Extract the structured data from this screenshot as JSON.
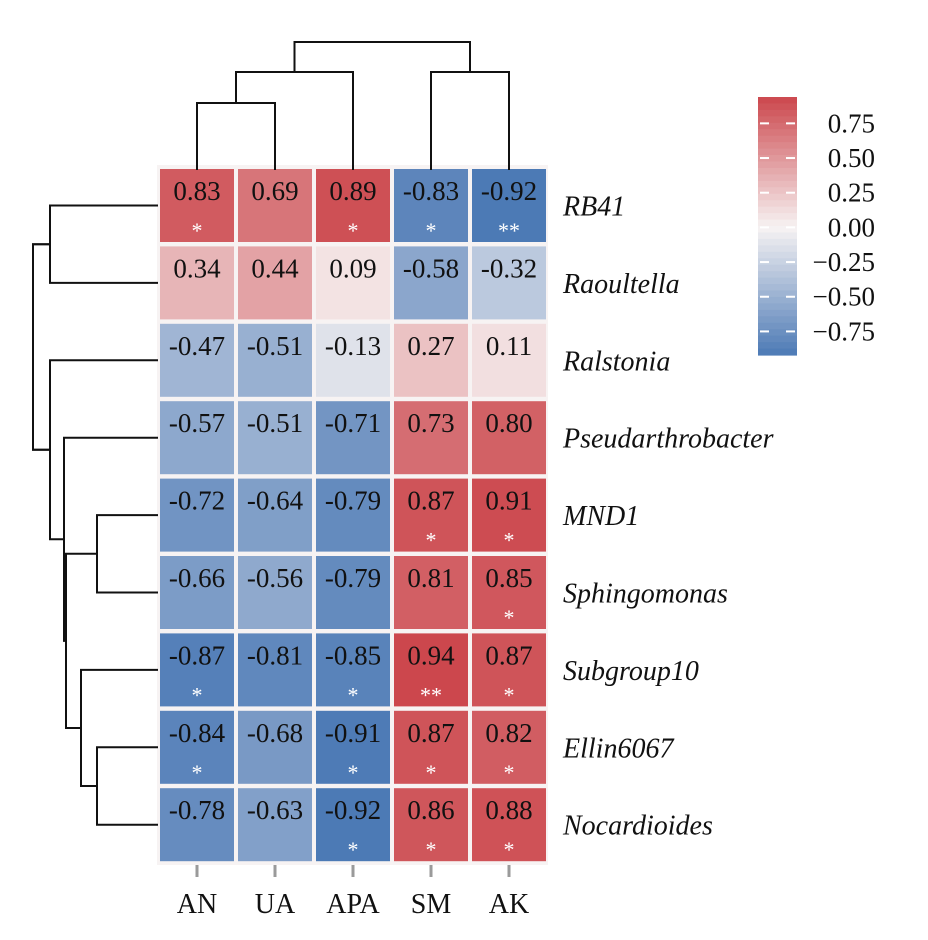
{
  "chart_data": {
    "type": "heatmap",
    "columns": [
      "AN",
      "UA",
      "APA",
      "SM",
      "AK"
    ],
    "rows": [
      "RB41",
      "Raoultella",
      "Ralstonia",
      "Pseudarthrobacter",
      "MND1",
      "Sphingomonas",
      "Subgroup10",
      "Ellin6067",
      "Nocardioides"
    ],
    "values": [
      [
        0.83,
        0.69,
        0.89,
        -0.83,
        -0.92
      ],
      [
        0.34,
        0.44,
        0.09,
        -0.58,
        -0.32
      ],
      [
        -0.47,
        -0.51,
        -0.13,
        0.27,
        0.11
      ],
      [
        -0.57,
        -0.51,
        -0.71,
        0.73,
        0.8
      ],
      [
        -0.72,
        -0.64,
        -0.79,
        0.87,
        0.91
      ],
      [
        -0.66,
        -0.56,
        -0.79,
        0.81,
        0.85
      ],
      [
        -0.87,
        -0.81,
        -0.85,
        0.94,
        0.87
      ],
      [
        -0.84,
        -0.68,
        -0.91,
        0.87,
        0.82
      ],
      [
        -0.78,
        -0.63,
        -0.92,
        0.86,
        0.88
      ]
    ],
    "labels": [
      [
        "0.83",
        "0.69",
        "0.89",
        "-0.83",
        "-0.92"
      ],
      [
        "0.34",
        "0.44",
        "0.09",
        "-0.58",
        "-0.32"
      ],
      [
        "-0.47",
        "-0.51",
        "-0.13",
        "0.27",
        "0.11"
      ],
      [
        "-0.57",
        "-0.51",
        "-0.71",
        "0.73",
        "0.80"
      ],
      [
        "-0.72",
        "-0.64",
        "-0.79",
        "0.87",
        "0.91"
      ],
      [
        "-0.66",
        "-0.56",
        "-0.79",
        "0.81",
        "0.85"
      ],
      [
        "-0.87",
        "-0.81",
        "-0.85",
        "0.94",
        "0.87"
      ],
      [
        "-0.84",
        "-0.68",
        "-0.91",
        "0.87",
        "0.82"
      ],
      [
        "-0.78",
        "-0.63",
        "-0.92",
        "0.86",
        "0.88"
      ]
    ],
    "significance": [
      [
        "*",
        "",
        "*",
        "*",
        "**"
      ],
      [
        "",
        "",
        "",
        "",
        ""
      ],
      [
        "",
        "",
        "",
        "",
        ""
      ],
      [
        "",
        "",
        "",
        "",
        ""
      ],
      [
        "",
        "",
        "",
        "*",
        "*"
      ],
      [
        "",
        "",
        "",
        "",
        "*"
      ],
      [
        "*",
        "",
        "*",
        "**",
        "*"
      ],
      [
        "*",
        "",
        "*",
        "*",
        "*"
      ],
      [
        "",
        "",
        "*",
        "*",
        "*"
      ]
    ],
    "color_range": [
      -1,
      1
    ],
    "colormap": {
      "negative": "#3d6fb0",
      "zero": "#f7f3f3",
      "positive": "#c93c42"
    },
    "colorbar": {
      "ticks": [
        0.75,
        0.5,
        0.25,
        0.0,
        -0.25,
        -0.5,
        -0.75
      ],
      "tick_labels": [
        "0.75",
        "0.50",
        "0.25",
        "0.00",
        "−0.25",
        "−0.50",
        "−0.75"
      ],
      "range": [
        -0.92,
        0.94
      ]
    },
    "column_dendrogram": "((AN,UA),APA),(SM,AK)",
    "row_dendrogram": "((RB41,Raoultella),(Ralstonia,(Pseudarthrobacter,((MND1,Sphingomonas),(Subgroup10,(Ellin6067,Nocardioides))))))",
    "title": "",
    "xlabel": "",
    "ylabel": ""
  }
}
